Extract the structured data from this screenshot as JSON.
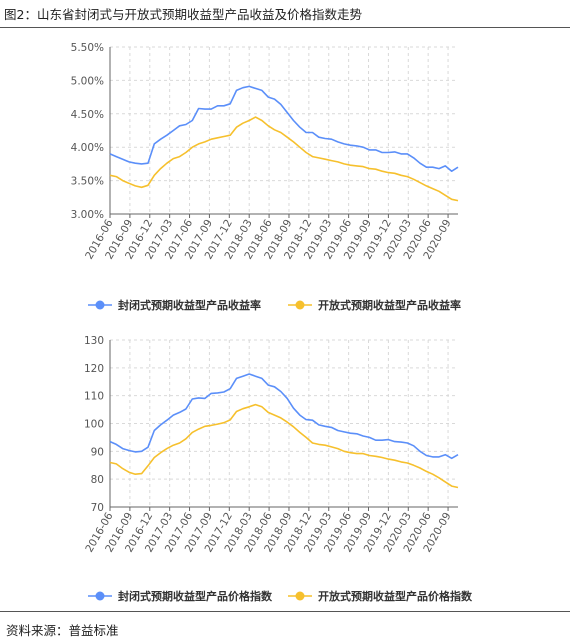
{
  "figure_title": "图2：山东省封闭式与开放式预期收益型产品收益及价格指数走势",
  "source": "资料来源：普益标准",
  "colors": {
    "closed": "#5b8ff9",
    "open": "#f6c02d",
    "grid": "#d9d9d9",
    "axis": "#666666"
  },
  "chart_data": [
    {
      "type": "line",
      "title": "",
      "xlabel": "",
      "ylabel": "",
      "x_tick_labels": [
        "2016-06",
        "2016-09",
        "2016-12",
        "2017-03",
        "2017-06",
        "2017-09",
        "2017-12",
        "2018-03",
        "2018-06",
        "2018-09",
        "2018-12",
        "2019-03",
        "2019-06",
        "2019-09",
        "2019-12",
        "2020-03",
        "2020-06",
        "2020-09"
      ],
      "y_tick_labels": [
        "3.00%",
        "3.50%",
        "4.00%",
        "4.50%",
        "5.00%",
        "5.50%"
      ],
      "ylim": [
        3.0,
        5.5
      ],
      "grid": true,
      "legend_position": "bottom",
      "series": [
        {
          "name": "封闭式预期收益型产品收益率",
          "values": [
            3.9,
            3.86,
            3.82,
            3.78,
            3.76,
            3.75,
            3.76,
            4.05,
            4.12,
            4.18,
            4.25,
            4.32,
            4.34,
            4.4,
            4.58,
            4.57,
            4.57,
            4.62,
            4.62,
            4.65,
            4.85,
            4.89,
            4.91,
            4.88,
            4.85,
            4.75,
            4.72,
            4.64,
            4.52,
            4.4,
            4.3,
            4.22,
            4.22,
            4.15,
            4.13,
            4.12,
            4.08,
            4.05,
            4.03,
            4.02,
            4.0,
            3.96,
            3.96,
            3.92,
            3.92,
            3.93,
            3.9,
            3.9,
            3.84,
            3.76,
            3.7,
            3.7,
            3.68,
            3.72,
            3.64,
            3.7
          ]
        },
        {
          "name": "开放式预期收益型产品收益率",
          "values": [
            3.58,
            3.56,
            3.5,
            3.46,
            3.42,
            3.4,
            3.43,
            3.58,
            3.68,
            3.76,
            3.83,
            3.86,
            3.92,
            4.0,
            4.05,
            4.08,
            4.12,
            4.14,
            4.16,
            4.18,
            4.3,
            4.36,
            4.4,
            4.45,
            4.4,
            4.32,
            4.26,
            4.22,
            4.15,
            4.08,
            4.0,
            3.92,
            3.86,
            3.84,
            3.82,
            3.8,
            3.78,
            3.75,
            3.73,
            3.72,
            3.71,
            3.68,
            3.67,
            3.64,
            3.62,
            3.61,
            3.58,
            3.56,
            3.52,
            3.47,
            3.42,
            3.38,
            3.34,
            3.28,
            3.22,
            3.2
          ]
        }
      ]
    },
    {
      "type": "line",
      "title": "",
      "xlabel": "",
      "ylabel": "",
      "x_tick_labels": [
        "2016-06",
        "2016-09",
        "2016-12",
        "2017-03",
        "2017-06",
        "2017-09",
        "2017-12",
        "2018-03",
        "2018-06",
        "2018-09",
        "2018-12",
        "2019-03",
        "2019-06",
        "2019-09",
        "2019-12",
        "2020-03",
        "2020-06",
        "2020-09"
      ],
      "y_tick_labels": [
        "70",
        "80",
        "90",
        "100",
        "110",
        "120",
        "130"
      ],
      "ylim": [
        70,
        130
      ],
      "grid": true,
      "legend_position": "bottom",
      "series": [
        {
          "name": "封闭式预期收益型产品价格指数",
          "values": [
            93.5,
            92.5,
            91.0,
            90.3,
            89.8,
            90.0,
            91.5,
            97.5,
            99.5,
            101.2,
            103.0,
            104.0,
            105.2,
            108.8,
            109.2,
            109.0,
            110.8,
            111.0,
            111.3,
            112.5,
            116.2,
            117.0,
            117.8,
            117.0,
            116.2,
            113.8,
            113.2,
            111.5,
            109.0,
            105.5,
            103.0,
            101.4,
            101.2,
            99.5,
            99.0,
            98.6,
            97.5,
            97.0,
            96.5,
            96.3,
            95.5,
            95.0,
            94.0,
            94.0,
            94.2,
            93.5,
            93.3,
            93.0,
            92.0,
            90.0,
            88.5,
            88.0,
            88.0,
            88.8,
            87.5,
            88.8
          ]
        },
        {
          "name": "开放式预期收益型产品价格指数",
          "values": [
            86.0,
            85.5,
            83.8,
            82.5,
            81.8,
            82.0,
            84.8,
            87.8,
            89.5,
            91.0,
            92.2,
            93.0,
            94.5,
            96.8,
            98.0,
            99.0,
            99.3,
            99.8,
            100.3,
            101.3,
            104.3,
            105.3,
            106.0,
            106.8,
            106.0,
            104.0,
            103.0,
            102.0,
            100.5,
            98.8,
            96.8,
            95.0,
            93.0,
            92.5,
            92.2,
            91.6,
            91.0,
            90.0,
            89.5,
            89.2,
            89.2,
            88.5,
            88.2,
            87.8,
            87.2,
            86.8,
            86.2,
            85.8,
            85.0,
            84.0,
            82.8,
            81.8,
            80.5,
            79.0,
            77.5,
            77.0
          ]
        }
      ]
    }
  ]
}
